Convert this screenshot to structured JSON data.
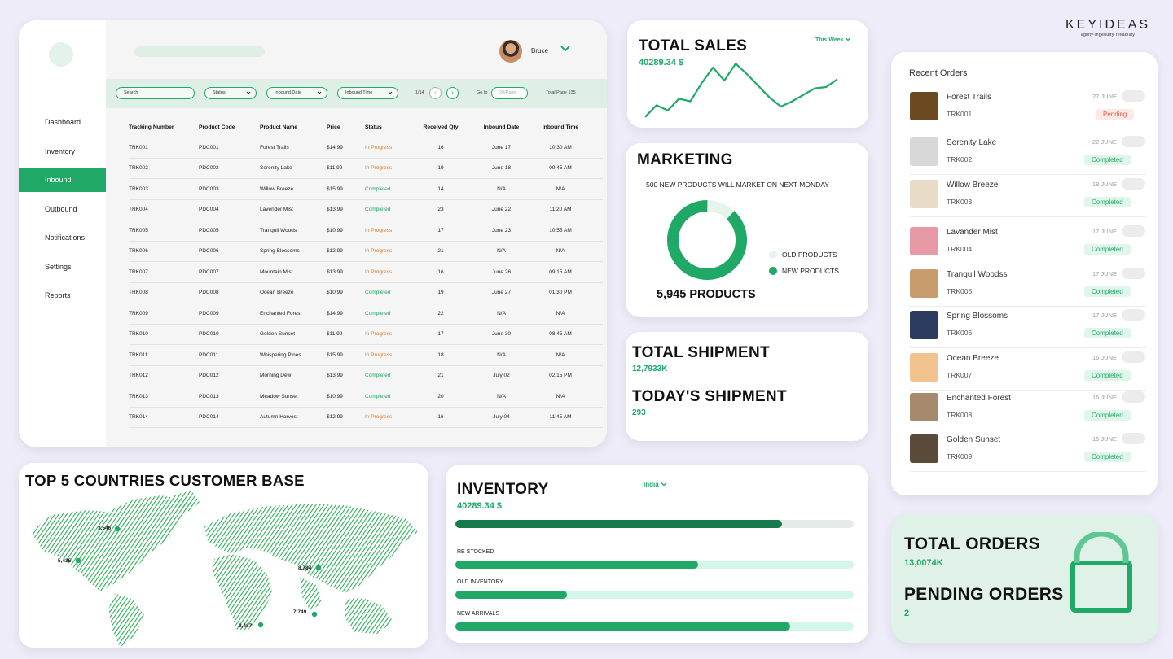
{
  "brand": {
    "name": "KEYIDEAS",
    "tagline": "agility·ingenuity·reliability"
  },
  "sidebar": {
    "items": [
      {
        "label": "Dashboard",
        "active": false
      },
      {
        "label": "Inventory",
        "active": false
      },
      {
        "label": "Inbound",
        "active": true
      },
      {
        "label": "Outbound",
        "active": false
      },
      {
        "label": "Notifications",
        "active": false
      },
      {
        "label": "Settings",
        "active": false
      },
      {
        "label": "Reports",
        "active": false
      }
    ]
  },
  "user": {
    "name": "Bruce"
  },
  "filters": {
    "search_placeholder": "Search",
    "status": "Status",
    "inbound_date": "Inbound Date",
    "inbound_time": "Inbound Time",
    "page": "1/14",
    "goto_label": "Go to",
    "per_page": "20/Page",
    "total_page": "Total Page 135"
  },
  "table": {
    "headers": [
      "Tracking Number",
      "Product Code",
      "Product Name",
      "Price",
      "Status",
      "Received Qty",
      "Inbound Date",
      "Inbound Time"
    ],
    "rows": [
      [
        "TRK001",
        "PDC001",
        "Forest Trails",
        "$14.99",
        "In Progress",
        "16",
        "June 17",
        "10:30 AM"
      ],
      [
        "TRK002",
        "PDC002",
        "Serenity Lake",
        "$11.99",
        "In Progress",
        "19",
        "June 18",
        "09:45 AM"
      ],
      [
        "TRK003",
        "PDC003",
        "Willow Breeze",
        "$15.99",
        "Completed",
        "14",
        "N/A",
        "N/A"
      ],
      [
        "TRK004",
        "PDC004",
        "Lavender Mist",
        "$13.99",
        "Completed",
        "23",
        "June 22",
        "11:20 AM"
      ],
      [
        "TRK005",
        "PDC005",
        "Tranquil Woods",
        "$10.99",
        "In Progress",
        "17",
        "June 23",
        "10:55 AM"
      ],
      [
        "TRK006",
        "PDC006",
        "Spring Blossoms",
        "$12.99",
        "In Progress",
        "21",
        "N/A",
        "N/A"
      ],
      [
        "TRK007",
        "PDC007",
        "Mountain Mist",
        "$13.99",
        "In Progress",
        "16",
        "June 26",
        "09:15 AM"
      ],
      [
        "TRK008",
        "PDC008",
        "Ocean Breeze",
        "$10.99",
        "Completed",
        "19",
        "June 27",
        "01:30 PM"
      ],
      [
        "TRK009",
        "PDC009",
        "Enchanted Forest",
        "$14.99",
        "Completed",
        "22",
        "N/A",
        "N/A"
      ],
      [
        "TRK010",
        "PDC010",
        "Golden Sunset",
        "$11.99",
        "In Progress",
        "17",
        "June 30",
        "08:45 AM"
      ],
      [
        "TRK011",
        "PDC011",
        "Whispering Pines",
        "$15.99",
        "In Progress",
        "18",
        "N/A",
        "N/A"
      ],
      [
        "TRK012",
        "PDC012",
        "Morning Dew",
        "$13.99",
        "Completed",
        "21",
        "July 02",
        "02:15 PM"
      ],
      [
        "TRK013",
        "PDC013",
        "Meadow Sunset",
        "$10.99",
        "Completed",
        "20",
        "N/A",
        "N/A"
      ],
      [
        "TRK014",
        "PDC014",
        "Autumn Harvest",
        "$12.99",
        "In Progress",
        "16",
        "July 04",
        "11:45 AM"
      ]
    ]
  },
  "sales": {
    "title": "TOTAL SALES",
    "value": "40289.34 $",
    "period": "This Week",
    "trend": [
      2,
      11,
      7,
      16,
      14,
      28,
      40,
      30,
      43,
      35,
      26,
      17,
      10,
      14,
      19,
      24,
      25,
      31
    ]
  },
  "marketing": {
    "title": "MARKETING",
    "subtitle": "500 NEW PRODUCTS WILL MARKET ON NEXT MONDAY",
    "total": "5,945 PRODUCTS",
    "legend": [
      {
        "label": "OLD PRODUCTS",
        "color": "#e6f5ec"
      },
      {
        "label": "NEW PRODUCTS",
        "color": "#1fa866"
      }
    ],
    "new_fraction": 0.88
  },
  "shipment": {
    "total_title": "TOTAL SHIPMENT",
    "total_value": "12,7933K",
    "today_title": "TODAY'S SHIPMENT",
    "today_value": "293"
  },
  "recent_orders": {
    "title": "Recent Orders",
    "items": [
      {
        "name": "Forest Trails",
        "code": "TRK001",
        "date": "27 JUNE",
        "status": "Pending",
        "thumb": "#6b4a22"
      },
      {
        "name": "Serenity Lake",
        "code": "TRK002",
        "date": "22 JUNE",
        "status": "Completed",
        "thumb": "#d8d8d8"
      },
      {
        "name": "Willow Breeze",
        "code": "TRK003",
        "date": "18 JUNE",
        "status": "Completed",
        "thumb": "#e8dcc8"
      },
      {
        "name": "Lavander Mist",
        "code": "TRK004",
        "date": "17 JUNE",
        "status": "Completed",
        "thumb": "#e79aa6"
      },
      {
        "name": "Tranquil Woodss",
        "code": "TRK005",
        "date": "17 JUNE",
        "status": "Completed",
        "thumb": "#c89c6c"
      },
      {
        "name": "Spring Blossoms",
        "code": "TRK006",
        "date": "17 JUNE",
        "status": "Completed",
        "thumb": "#2b3c5e"
      },
      {
        "name": "Ocean Breeze",
        "code": "TRK007",
        "date": "16 JUNE",
        "status": "Completed",
        "thumb": "#f2c38f"
      },
      {
        "name": "Enchanted Forest",
        "code": "TRK008",
        "date": "16 JUNE",
        "status": "Completed",
        "thumb": "#a58a6e"
      },
      {
        "name": "Golden Sunset",
        "code": "TRK009",
        "date": "15 JUNE",
        "status": "Completed",
        "thumb": "#5a4a3a"
      }
    ]
  },
  "total_orders": {
    "title": "TOTAL ORDERS",
    "value": "13,0074K",
    "pending_title": "PENDING ORDERS",
    "pending_value": "2"
  },
  "countries": {
    "title": "TOP 5 COUNTRIES CUSTOMER BASE",
    "markers": [
      "3,546",
      "5,435",
      "8,784",
      "7,749",
      "3,487"
    ]
  },
  "inventory": {
    "title": "INVENTORY",
    "value": "40289.34 $",
    "country": "India",
    "bars": [
      {
        "label": "",
        "fraction": 0.82,
        "color": "#157a4d",
        "track": "#e6ebe8"
      },
      {
        "label": "RE STOCKED",
        "fraction": 0.61,
        "color": "#1fa866",
        "track": "#d4f6e6"
      },
      {
        "label": "OLD INVENTORY",
        "fraction": 0.28,
        "color": "#1fa866",
        "track": "#d4f6e6"
      },
      {
        "label": "NEW ARRIVALS",
        "fraction": 0.84,
        "color": "#1fa866",
        "track": "#d4f6e6"
      }
    ]
  }
}
